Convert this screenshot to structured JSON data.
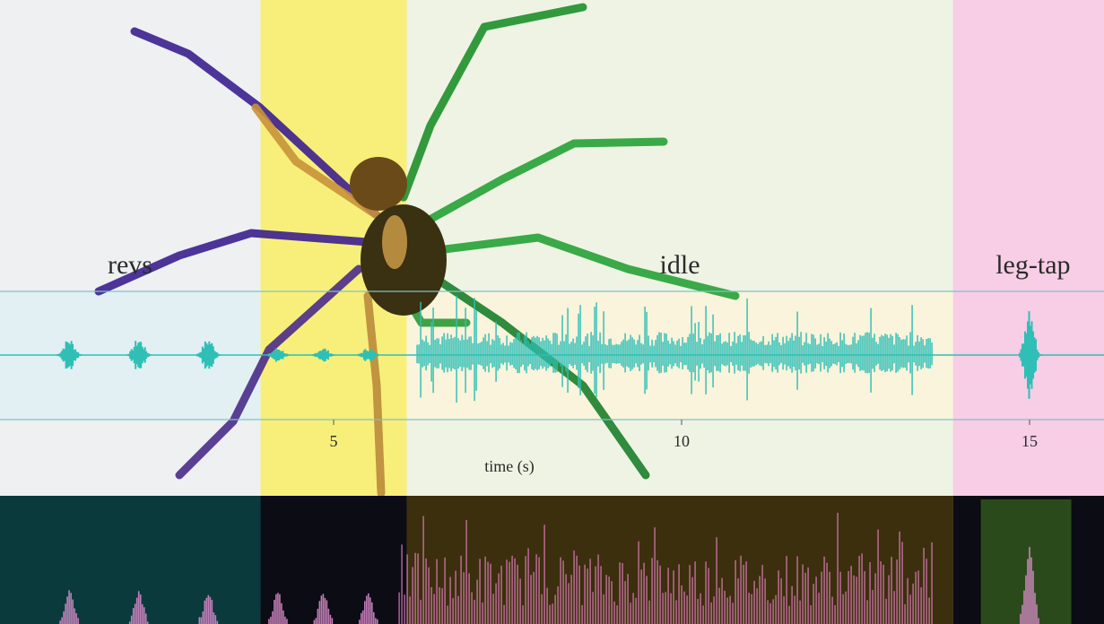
{
  "chart_data": {
    "type": "line",
    "xlabel": "time (s)",
    "x_ticks": [
      5,
      10,
      15
    ],
    "xlim": [
      0.3,
      16.2
    ],
    "segments": [
      {
        "label": "revs",
        "x_start": 0.3,
        "x_end": 3.95,
        "color": "#eef0f2",
        "spec_color": "#0b3a3c"
      },
      {
        "label": "",
        "x_start": 3.95,
        "x_end": 6.05,
        "color": "#f7ef7a",
        "spec_color": "#0b0c14"
      },
      {
        "label": "idle",
        "x_start": 6.05,
        "x_end": 13.9,
        "color": "#eef3e4",
        "spec_color": "#3c2f0d"
      },
      {
        "label": "leg-tap",
        "x_start": 13.9,
        "x_end": 16.2,
        "color": "#f8cde6",
        "spec_color": "#0b0c14"
      }
    ],
    "waveform": {
      "color": "#2fbfb6",
      "bursts_s": [
        1.2,
        2.2,
        3.2,
        4.2,
        4.85,
        5.5,
        15.0
      ],
      "dense_interval_s": [
        6.2,
        13.6
      ]
    },
    "spectrogram_band": {
      "color": "#2b4a1c",
      "x_start": 14.3,
      "x_end": 15.6
    }
  }
}
